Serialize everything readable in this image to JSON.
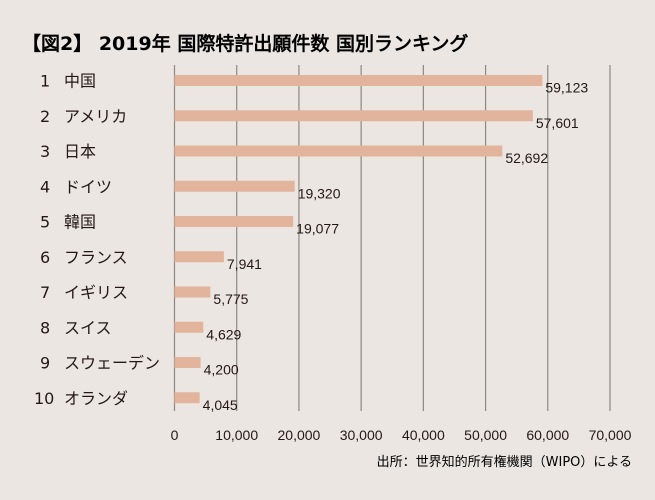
{
  "chart_data": {
    "type": "bar",
    "orientation": "horizontal",
    "title": "【図2】 2019年 国際特許出願件数 国別ランキング",
    "ranks": [
      "1",
      "2",
      "3",
      "4",
      "5",
      "6",
      "7",
      "8",
      "9",
      "10"
    ],
    "categories": [
      "中国",
      "アメリカ",
      "日本",
      "ドイツ",
      "韓国",
      "フランス",
      "イギリス",
      "スイス",
      "スウェーデン",
      "オランダ"
    ],
    "values": [
      59123,
      57601,
      52692,
      19320,
      19077,
      7941,
      5775,
      4629,
      4200,
      4045
    ],
    "data_labels": [
      "59,123",
      "57,601",
      "52,692",
      "19,320",
      "19,077",
      "7,941",
      "5,775",
      "4,629",
      "4,200",
      "4,045"
    ],
    "xlim": [
      0,
      70000
    ],
    "xticks": [
      0,
      10000,
      20000,
      30000,
      40000,
      50000,
      60000,
      70000
    ],
    "xtick_labels": [
      "0",
      "10,000",
      "20,000",
      "30,000",
      "40,000",
      "50,000",
      "60,000",
      "70,000"
    ],
    "xlabel": "",
    "ylabel": "",
    "grid": "vertical",
    "source": "出所：世界知的所有権機関（WIPO）による",
    "colors": {
      "bar": "#e2b49c",
      "grid": "#8c8884",
      "background": "#ebe6e2",
      "text": "#231815"
    }
  }
}
